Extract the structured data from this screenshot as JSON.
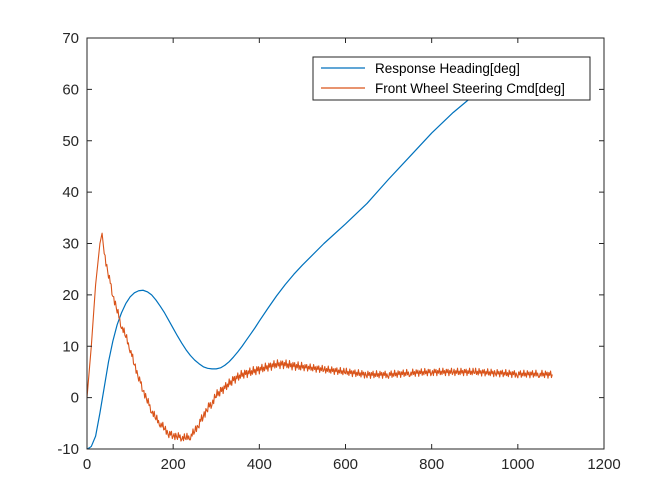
{
  "chart_data": {
    "type": "line",
    "title": "",
    "xlabel": "",
    "ylabel": "",
    "xlim": [
      0,
      1200
    ],
    "ylim": [
      -10,
      70
    ],
    "xticks": [
      0,
      200,
      400,
      600,
      800,
      1000,
      1200
    ],
    "yticks": [
      -10,
      0,
      10,
      20,
      30,
      40,
      50,
      60,
      70
    ],
    "grid": false,
    "legend_position": "top-right",
    "series": [
      {
        "name": "Response Heading[deg]",
        "color": "#0072BD",
        "x": [
          0,
          5,
          10,
          20,
          30,
          40,
          50,
          60,
          70,
          80,
          90,
          100,
          110,
          120,
          130,
          140,
          150,
          160,
          170,
          180,
          190,
          200,
          210,
          220,
          230,
          240,
          250,
          260,
          270,
          280,
          290,
          300,
          310,
          320,
          330,
          340,
          350,
          360,
          370,
          380,
          390,
          400,
          420,
          440,
          460,
          480,
          500,
          550,
          600,
          650,
          700,
          750,
          800,
          850,
          900,
          950,
          1000,
          1010
        ],
        "y": [
          -10,
          -9.8,
          -9.5,
          -7.5,
          -3,
          2,
          7,
          11,
          14.2,
          16.5,
          18.3,
          19.6,
          20.4,
          20.8,
          20.9,
          20.6,
          20.0,
          19.0,
          17.8,
          16.5,
          15.0,
          13.5,
          12.0,
          10.6,
          9.3,
          8.2,
          7.3,
          6.6,
          6.0,
          5.7,
          5.6,
          5.6,
          5.8,
          6.3,
          7.0,
          7.9,
          8.9,
          10.0,
          11.2,
          12.4,
          13.6,
          14.9,
          17.4,
          19.8,
          22.0,
          24.0,
          25.8,
          30.0,
          33.8,
          37.8,
          42.5,
          47.0,
          51.5,
          55.5,
          59.0,
          59.5,
          59.8,
          60.0
        ]
      },
      {
        "name": "Front Wheel Steering Cmd[deg]",
        "color": "#D95319",
        "x": [
          0,
          10,
          20,
          30,
          35,
          40,
          50,
          60,
          70,
          80,
          90,
          100,
          110,
          120,
          130,
          140,
          150,
          160,
          170,
          180,
          190,
          200,
          210,
          220,
          230,
          240,
          250,
          260,
          270,
          280,
          290,
          300,
          320,
          340,
          360,
          380,
          400,
          420,
          440,
          460,
          480,
          500,
          550,
          600,
          650,
          700,
          750,
          800,
          850,
          900,
          950,
          1000,
          1050,
          1080
        ],
        "y": [
          0,
          10,
          22,
          30,
          32,
          28,
          24,
          20,
          17,
          14,
          12,
          9.5,
          6.5,
          4,
          1.5,
          -0.5,
          -2.5,
          -4,
          -5,
          -6,
          -7,
          -7.3,
          -7.5,
          -7.7,
          -7.8,
          -7.5,
          -6.5,
          -5,
          -3.5,
          -2,
          -1,
          0.5,
          2,
          3.5,
          4.5,
          5,
          5.5,
          6,
          6.5,
          6.5,
          6.2,
          6.0,
          5.5,
          5.0,
          4.5,
          4.5,
          4.8,
          5.0,
          5.0,
          5.0,
          4.8,
          4.6,
          4.6,
          4.5
        ]
      }
    ]
  }
}
